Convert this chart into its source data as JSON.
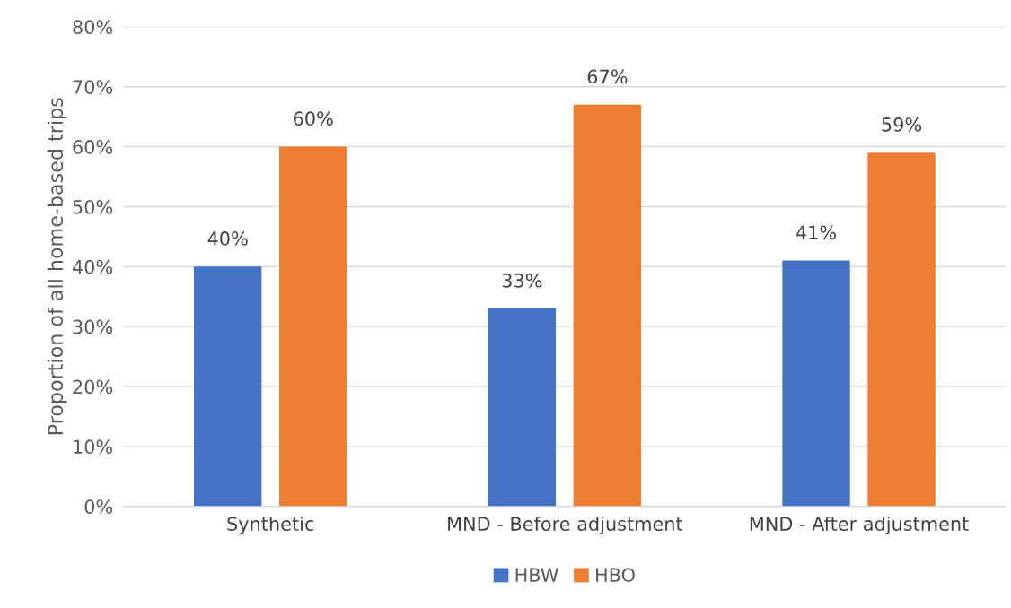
{
  "chart_data": {
    "type": "bar",
    "ylabel": "Proportion of all home-based trips",
    "categories": [
      "Synthetic",
      "MND - Before adjustment",
      "MND - After adjustment"
    ],
    "series": [
      {
        "name": "HBW",
        "color": "#4472c4",
        "values": [
          40,
          33,
          41
        ],
        "value_labels": [
          "40%",
          "33%",
          "41%"
        ]
      },
      {
        "name": "HBO",
        "color": "#ed7d31",
        "values": [
          60,
          67,
          59
        ],
        "value_labels": [
          "60%",
          "67%",
          "59%"
        ]
      }
    ],
    "ylim": [
      0,
      80
    ],
    "yticks": [
      {
        "value": 0,
        "label": "0%"
      },
      {
        "value": 10,
        "label": "10%"
      },
      {
        "value": 20,
        "label": "20%"
      },
      {
        "value": 30,
        "label": "30%"
      },
      {
        "value": 40,
        "label": "40%"
      },
      {
        "value": 50,
        "label": "50%"
      },
      {
        "value": 60,
        "label": "60%"
      },
      {
        "value": 70,
        "label": "70%"
      },
      {
        "value": 80,
        "label": "80%"
      }
    ],
    "grid": "y",
    "legend": "bottom"
  }
}
